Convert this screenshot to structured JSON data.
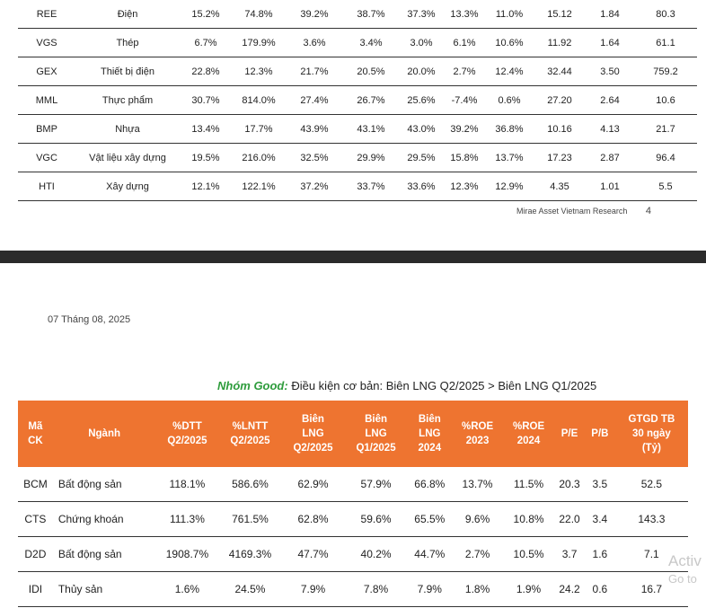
{
  "top_table": {
    "rows": [
      [
        "REE",
        "Điện",
        "15.2%",
        "74.8%",
        "39.2%",
        "38.7%",
        "37.3%",
        "13.3%",
        "11.0%",
        "15.12",
        "1.84",
        "80.3"
      ],
      [
        "VGS",
        "Thép",
        "6.7%",
        "179.9%",
        "3.6%",
        "3.4%",
        "3.0%",
        "6.1%",
        "10.6%",
        "11.92",
        "1.64",
        "61.1"
      ],
      [
        "GEX",
        "Thiết bị điện",
        "22.8%",
        "12.3%",
        "21.7%",
        "20.5%",
        "20.0%",
        "2.7%",
        "12.4%",
        "32.44",
        "3.50",
        "759.2"
      ],
      [
        "MML",
        "Thực phẩm",
        "30.7%",
        "814.0%",
        "27.4%",
        "26.7%",
        "25.6%",
        "-7.4%",
        "0.6%",
        "27.20",
        "2.64",
        "10.6"
      ],
      [
        "BMP",
        "Nhựa",
        "13.4%",
        "17.7%",
        "43.9%",
        "43.1%",
        "43.0%",
        "39.2%",
        "36.8%",
        "10.16",
        "4.13",
        "21.7"
      ],
      [
        "VGC",
        "Vật liệu xây dựng",
        "19.5%",
        "216.0%",
        "32.5%",
        "29.9%",
        "29.5%",
        "15.8%",
        "13.7%",
        "17.23",
        "2.87",
        "96.4"
      ],
      [
        "HTI",
        "Xây dựng",
        "12.1%",
        "122.1%",
        "37.2%",
        "33.7%",
        "33.6%",
        "12.3%",
        "12.9%",
        "4.35",
        "1.01",
        "5.5"
      ]
    ]
  },
  "footer": {
    "source": "Mirae Asset Vietnam Research",
    "page": "4"
  },
  "date": "07 Tháng 08, 2025",
  "group": {
    "name": "Nhóm Good:",
    "condition": " Điều kiện cơ bản: Biên LNG Q2/2025 > Biên LNG Q1/2025"
  },
  "main_table": {
    "headers": [
      [
        "Mã",
        "CK"
      ],
      [
        "Ngành"
      ],
      [
        "%DTT",
        "Q2/2025"
      ],
      [
        "%LNTT",
        "Q2/2025"
      ],
      [
        "Biên",
        "LNG",
        "Q2/2025"
      ],
      [
        "Biên",
        "LNG",
        "Q1/2025"
      ],
      [
        "Biên",
        "LNG",
        "2024"
      ],
      [
        "%ROE",
        "2023"
      ],
      [
        "%ROE",
        "2024"
      ],
      [
        "P/E"
      ],
      [
        "P/B"
      ],
      [
        "GTGD TB",
        "30 ngày",
        "(Tỷ)"
      ]
    ],
    "rows": [
      [
        "BCM",
        "Bất động sản",
        "118.1%",
        "586.6%",
        "62.9%",
        "57.9%",
        "66.8%",
        "13.7%",
        "11.5%",
        "20.3",
        "3.5",
        "52.5"
      ],
      [
        "CTS",
        "Chứng khoán",
        "111.3%",
        "761.5%",
        "62.8%",
        "59.6%",
        "65.5%",
        "9.6%",
        "10.8%",
        "22.0",
        "3.4",
        "143.3"
      ],
      [
        "D2D",
        "Bất động sản",
        "1908.7%",
        "4169.3%",
        "47.7%",
        "40.2%",
        "44.7%",
        "2.7%",
        "10.5%",
        "3.7",
        "1.6",
        "7.1"
      ],
      [
        "IDI",
        "Thủy sản",
        "1.6%",
        "24.5%",
        "7.9%",
        "7.8%",
        "7.9%",
        "1.8%",
        "1.9%",
        "24.2",
        "0.6",
        "16.7"
      ]
    ]
  },
  "watermark": {
    "line1": "Activ",
    "line2": "Go to"
  },
  "colors": {
    "header_bg": "#ee7430",
    "group_name": "#2e9c3c",
    "page_gap": "#2b2b2b"
  }
}
